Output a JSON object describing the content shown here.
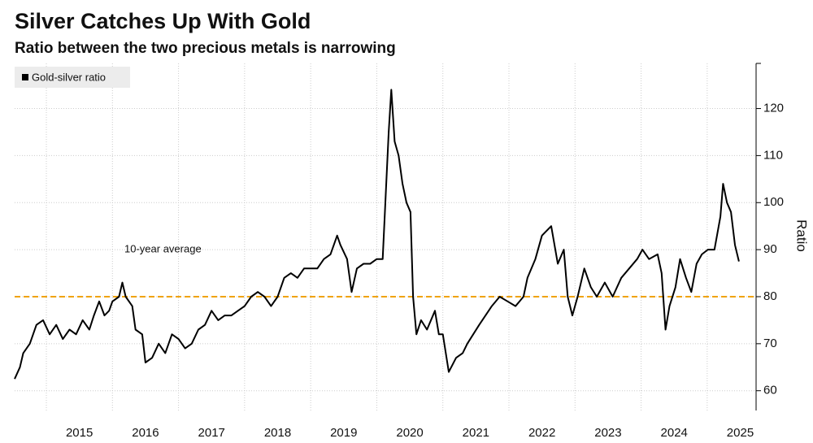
{
  "chart_data": {
    "type": "line",
    "title": "Silver Catches Up With Gold",
    "subtitle": "Ratio between the two precious metals is narrowing",
    "y_axis_label": "Ratio",
    "legend": "top-left",
    "grid": true,
    "xlim": [
      2014.52,
      2025.74
    ],
    "xticks": [
      {
        "value": 2015,
        "label": "2015"
      },
      {
        "value": 2016,
        "label": "2016"
      },
      {
        "value": 2017,
        "label": "2017"
      },
      {
        "value": 2018,
        "label": "2018"
      },
      {
        "value": 2019,
        "label": "2019"
      },
      {
        "value": 2020,
        "label": "2020"
      },
      {
        "value": 2021,
        "label": "2021"
      },
      {
        "value": 2022,
        "label": "2022"
      },
      {
        "value": 2023,
        "label": "2023"
      },
      {
        "value": 2024,
        "label": "2024"
      },
      {
        "value": 2025,
        "label": "2025"
      }
    ],
    "ylim": [
      55.8,
      129.6
    ],
    "yticks": [
      60,
      70,
      80,
      90,
      100,
      110,
      120
    ],
    "reference_line": {
      "value": 80,
      "label": "10-year average",
      "color": "#f0a30a"
    },
    "series": [
      {
        "name": "Gold-silver ratio",
        "color": "#000000",
        "x": [
          2014.52,
          2014.6,
          2014.65,
          2014.75,
          2014.85,
          2014.95,
          2015.05,
          2015.15,
          2015.25,
          2015.35,
          2015.45,
          2015.55,
          2015.65,
          2015.72,
          2015.8,
          2015.88,
          2015.95,
          2016.0,
          2016.1,
          2016.15,
          2016.2,
          2016.3,
          2016.35,
          2016.45,
          2016.5,
          2016.6,
          2016.7,
          2016.8,
          2016.9,
          2017.0,
          2017.1,
          2017.2,
          2017.3,
          2017.4,
          2017.5,
          2017.6,
          2017.7,
          2017.8,
          2017.9,
          2018.0,
          2018.1,
          2018.2,
          2018.3,
          2018.4,
          2018.5,
          2018.6,
          2018.7,
          2018.8,
          2018.9,
          2019.0,
          2019.1,
          2019.2,
          2019.3,
          2019.4,
          2019.45,
          2019.55,
          2019.62,
          2019.7,
          2019.8,
          2019.9,
          2020.0,
          2020.09,
          2020.18,
          2020.22,
          2020.27,
          2020.33,
          2020.39,
          2020.45,
          2020.51,
          2020.55,
          2020.6,
          2020.67,
          2020.76,
          2020.88,
          2020.94,
          2021.0,
          2021.09,
          2021.2,
          2021.3,
          2021.37,
          2021.55,
          2021.74,
          2021.86,
          2021.98,
          2022.1,
          2022.22,
          2022.28,
          2022.4,
          2022.5,
          2022.64,
          2022.74,
          2022.83,
          2022.89,
          2022.96,
          2023.04,
          2023.14,
          2023.24,
          2023.33,
          2023.45,
          2023.57,
          2023.7,
          2023.82,
          2023.94,
          2024.02,
          2024.12,
          2024.25,
          2024.31,
          2024.37,
          2024.43,
          2024.52,
          2024.59,
          2024.68,
          2024.76,
          2024.84,
          2024.92,
          2025.01,
          2025.11,
          2025.2,
          2025.24,
          2025.3,
          2025.36,
          2025.42,
          2025.48
        ],
        "values": [
          62.5,
          65,
          68,
          70,
          74,
          75,
          72,
          74,
          71,
          73,
          72,
          75,
          73,
          76,
          79,
          76,
          77,
          79,
          80,
          83,
          80,
          78,
          73,
          72,
          66,
          67,
          70,
          68,
          72,
          71,
          69,
          70,
          73,
          74,
          77,
          75,
          76,
          76,
          77,
          78,
          80,
          81,
          80,
          78,
          80,
          84,
          85,
          84,
          86,
          86,
          86,
          88,
          89,
          93,
          91,
          88,
          81,
          86,
          87,
          87,
          88,
          88,
          115,
          124,
          113,
          110,
          104,
          100,
          98,
          80,
          72,
          75,
          73,
          77,
          72,
          72,
          64,
          67,
          68,
          70,
          74,
          78,
          80,
          79,
          78,
          80,
          84,
          88,
          93,
          95,
          87,
          90,
          80,
          76,
          80,
          86,
          82,
          80,
          83,
          80,
          84,
          86,
          88,
          90,
          88,
          89,
          85,
          73,
          78,
          82,
          88,
          84,
          81,
          87,
          89,
          90,
          90,
          97,
          104,
          100,
          98,
          91,
          87.5
        ]
      }
    ]
  }
}
